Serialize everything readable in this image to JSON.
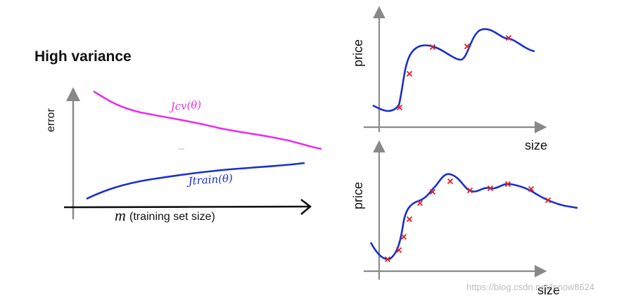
{
  "left_panel": {
    "title": "High variance",
    "ylabel": "error",
    "xlabel_symbol": "m",
    "xlabel_text": "(training set size)",
    "cv_curve_label": "Jcv(θ)",
    "train_curve_label": "Jtrain(θ)",
    "colors": {
      "cv": "#e830e8",
      "train": "#1a2fd0"
    }
  },
  "top_right_plot": {
    "ylabel": "price",
    "xlabel": "size",
    "curve_color": "#1a2fd0",
    "marker_color": "#e02020"
  },
  "bottom_right_plot": {
    "ylabel": "price",
    "xlabel": "size",
    "curve_color": "#1a2fd0",
    "marker_color": "#e02020"
  },
  "watermark": "https://blog.csdn.net/lsnow8624"
}
